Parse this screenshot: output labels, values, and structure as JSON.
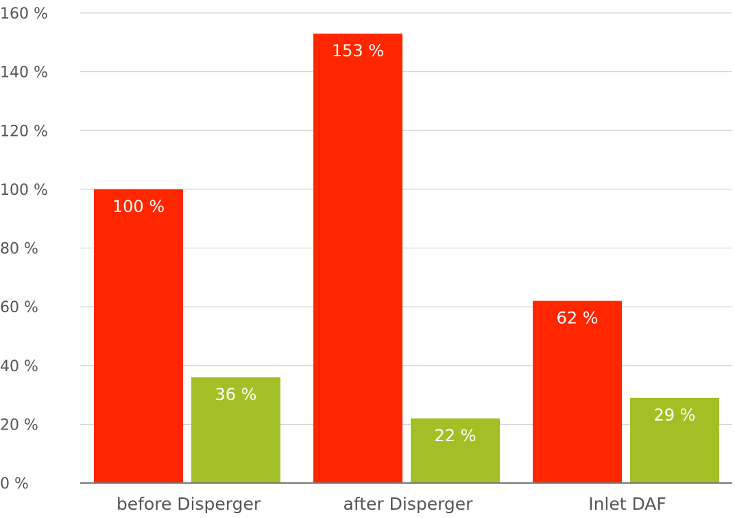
{
  "chart_data": {
    "type": "bar",
    "title": "",
    "xlabel": "",
    "ylabel": "",
    "categories": [
      "before Disperger",
      "after Disperger",
      "Inlet DAF"
    ],
    "series": [
      {
        "values": [
          100,
          153,
          62
        ],
        "labels": [
          "100 %",
          "153 %",
          "62 %"
        ],
        "color": "#ff2600"
      },
      {
        "values": [
          36,
          22,
          29
        ],
        "labels": [
          "36 %",
          "22 %",
          "29 %"
        ],
        "color": "#a2c026"
      }
    ],
    "ylim": [
      0,
      160
    ],
    "yticks": [
      0,
      20,
      40,
      60,
      80,
      100,
      120,
      140,
      160
    ],
    "ytick_labels": [
      "0 %",
      "20 %",
      "40 %",
      "60 %",
      "80 %",
      "100 %",
      "120 %",
      "140 %",
      "160 %"
    ],
    "grid": true,
    "legend": "none"
  }
}
